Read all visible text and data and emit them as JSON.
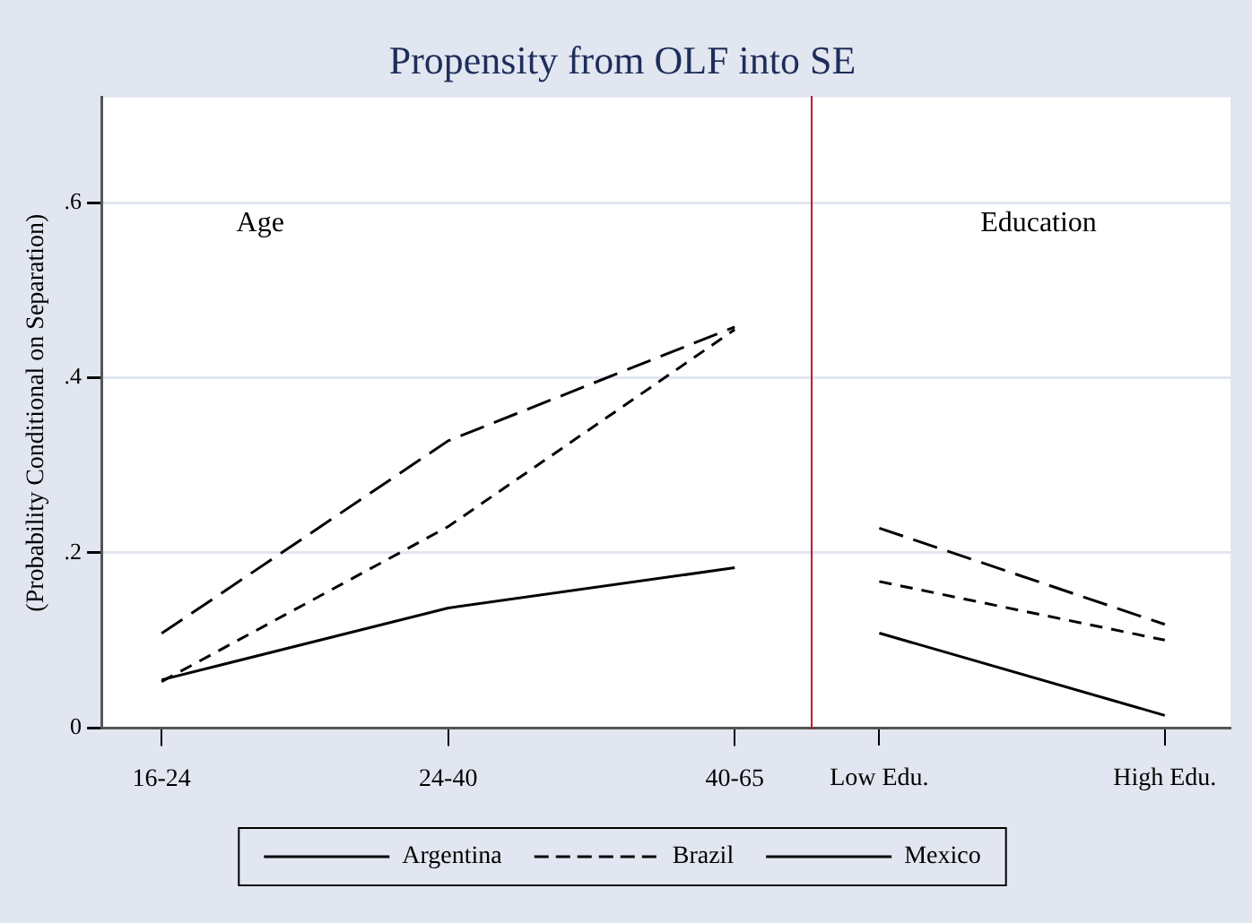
{
  "chart_data": [
    {
      "type": "line",
      "title": "Propensity from OLF into SE",
      "ylabel": "(Probability Conditional on Separation)",
      "categories": [
        "16-24",
        "24-40",
        "40-65"
      ],
      "series": [
        {
          "name": "Argentina",
          "color": "#000000",
          "line_style": "solid",
          "values": [
            0.055,
            0.137,
            0.183
          ]
        },
        {
          "name": "Brazil",
          "color": "#000000",
          "line_style": "dashed",
          "values": [
            0.053,
            0.23,
            0.455
          ]
        },
        {
          "name": "Mexico",
          "color": "#000000",
          "line_style": "longdash",
          "values": [
            0.108,
            0.328,
            0.458
          ]
        }
      ],
      "ylim": [
        0,
        0.72
      ],
      "yticks": [
        {
          "value": 0,
          "label": "0"
        },
        {
          "value": 0.2,
          "label": ".2"
        },
        {
          "value": 0.4,
          "label": ".4"
        },
        {
          "value": 0.6,
          "label": ".6"
        }
      ],
      "annotations": [
        "Age"
      ],
      "grid": "y",
      "legend": "bottom"
    },
    {
      "type": "line",
      "categories": [
        "Low Edu.",
        "High Edu."
      ],
      "series": [
        {
          "color": "#000000",
          "line_style": "solid",
          "values": [
            0.108,
            0.014
          ]
        },
        {
          "color": "#000000",
          "line_style": "dashed",
          "values": [
            0.167,
            0.1
          ]
        },
        {
          "color": "#000000",
          "line_style": "longdash",
          "values": [
            0.228,
            0.118
          ]
        }
      ],
      "ylim": [
        0,
        0.72
      ],
      "yticks": [
        0,
        0.2,
        0.4,
        0.6
      ],
      "annotations": [
        "Education"
      ],
      "grid": "y",
      "tick_labels": "x"
    }
  ]
}
